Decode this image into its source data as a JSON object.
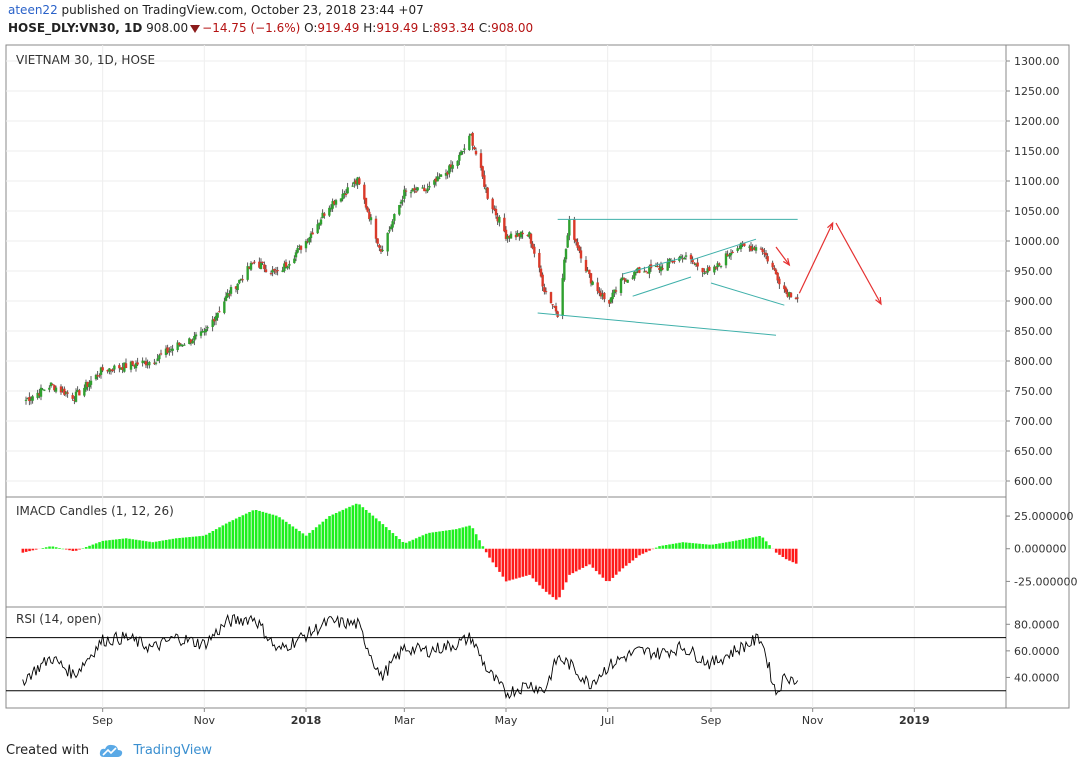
{
  "header": {
    "author": "ateen22",
    "published_text": "published on TradingView.com, October 23, 2018 23:44 +07",
    "symbol": "HOSE_DLY:VN30, 1D",
    "last": "908.00",
    "change": "−14.75 (−1.6%)",
    "open_label": "O:",
    "open": "919.49",
    "high_label": "H:",
    "high": "919.49",
    "low_label": "L:",
    "low": "893.34",
    "close_label": "C:",
    "close": "908.00"
  },
  "footer": {
    "created_with": "Created with",
    "brand": "TradingView"
  },
  "colors": {
    "up": "#2fa02f",
    "down": "#d93a2a",
    "hist_up": "#1ef01e",
    "hist_down": "#ff1a1a",
    "trend": "#3fb0aa",
    "arrow": "#e53131",
    "grid": "#eeeeee",
    "rsi_line": "#000000",
    "rsi_band": "#000000"
  },
  "chart_data": [
    {
      "type": "candlestick",
      "title": "VIETNAM 30, 1D, HOSE",
      "ylim": [
        590,
        1310
      ],
      "y_ticks": [
        "1300.00",
        "1250.00",
        "1200.00",
        "1150.00",
        "1100.00",
        "1050.00",
        "1000.00",
        "950.00",
        "900.00",
        "850.00",
        "800.00",
        "750.00",
        "700.00",
        "650.00",
        "600.00"
      ],
      "x_ticks": [
        "Sep",
        "Nov",
        "2018",
        "Mar",
        "May",
        "Jul",
        "Sep",
        "Nov",
        "2019"
      ],
      "series": [
        {
          "dates": [
            "2017-07-15",
            "2017-08-01",
            "2017-08-15",
            "2017-09-01",
            "2017-09-15",
            "2017-10-01",
            "2017-10-15",
            "2017-11-01",
            "2017-11-15",
            "2017-12-01",
            "2017-12-15",
            "2018-01-01",
            "2018-01-15",
            "2018-02-01",
            "2018-02-15",
            "2018-03-01",
            "2018-03-15",
            "2018-04-01",
            "2018-04-10",
            "2018-04-20",
            "2018-05-01",
            "2018-05-15",
            "2018-05-24",
            "2018-06-01",
            "2018-06-08",
            "2018-06-20",
            "2018-07-01",
            "2018-07-10",
            "2018-07-20",
            "2018-08-01",
            "2018-08-15",
            "2018-09-01",
            "2018-09-15",
            "2018-10-01",
            "2018-10-10",
            "2018-10-16",
            "2018-10-23"
          ],
          "values": [
            732,
            760,
            740,
            785,
            792,
            800,
            825,
            845,
            910,
            965,
            945,
            1000,
            1060,
            1100,
            985,
            1080,
            1085,
            1130,
            1175,
            1075,
            1010,
            1010,
            920,
            880,
            1030,
            940,
            895,
            935,
            950,
            955,
            975,
            945,
            990,
            990,
            945,
            915,
            908
          ]
        }
      ]
    },
    {
      "type": "bar",
      "title": "IMACD Candles (1, 12, 26)",
      "ylim": [
        -40,
        35
      ],
      "y_ticks": [
        "25.000000",
        "0.000000",
        "-25.000000"
      ],
      "series": [
        {
          "dates": [
            "2017-07-15",
            "2017-08-01",
            "2017-08-15",
            "2017-09-01",
            "2017-09-15",
            "2017-10-01",
            "2017-10-15",
            "2017-11-01",
            "2017-11-15",
            "2017-12-01",
            "2017-12-15",
            "2018-01-01",
            "2018-01-15",
            "2018-02-01",
            "2018-02-15",
            "2018-03-01",
            "2018-03-15",
            "2018-04-01",
            "2018-04-10",
            "2018-04-20",
            "2018-05-01",
            "2018-05-15",
            "2018-05-24",
            "2018-06-01",
            "2018-06-08",
            "2018-06-20",
            "2018-07-01",
            "2018-07-10",
            "2018-07-20",
            "2018-08-01",
            "2018-08-15",
            "2018-09-01",
            "2018-09-15",
            "2018-10-01",
            "2018-10-10",
            "2018-10-16",
            "2018-10-23"
          ],
          "values": [
            -3,
            2,
            -2,
            6,
            8,
            5,
            8,
            10,
            20,
            30,
            25,
            10,
            25,
            35,
            20,
            4,
            12,
            15,
            18,
            -5,
            -25,
            -20,
            -32,
            -40,
            -20,
            -12,
            -26,
            -15,
            -5,
            2,
            5,
            3,
            6,
            10,
            -3,
            -8,
            -12
          ]
        }
      ]
    },
    {
      "type": "line",
      "title": "RSI (14, open)",
      "ylim": [
        20,
        90
      ],
      "y_ticks": [
        "80.0000",
        "60.0000",
        "40.0000"
      ],
      "bands": [
        70,
        30
      ],
      "series": [
        {
          "dates": [
            "2017-07-15",
            "2017-08-01",
            "2017-08-15",
            "2017-09-01",
            "2017-09-15",
            "2017-10-01",
            "2017-10-15",
            "2017-11-01",
            "2017-11-15",
            "2017-12-01",
            "2017-12-15",
            "2018-01-01",
            "2018-01-15",
            "2018-02-01",
            "2018-02-15",
            "2018-03-01",
            "2018-03-15",
            "2018-04-01",
            "2018-04-10",
            "2018-04-20",
            "2018-05-01",
            "2018-05-15",
            "2018-05-24",
            "2018-06-01",
            "2018-06-08",
            "2018-06-20",
            "2018-07-01",
            "2018-07-10",
            "2018-07-20",
            "2018-08-01",
            "2018-08-15",
            "2018-09-01",
            "2018-09-15",
            "2018-10-01",
            "2018-10-10",
            "2018-10-16",
            "2018-10-23"
          ],
          "values": [
            38,
            55,
            42,
            68,
            70,
            62,
            70,
            65,
            82,
            85,
            60,
            72,
            82,
            80,
            40,
            62,
            60,
            65,
            70,
            45,
            28,
            35,
            30,
            55,
            50,
            35,
            48,
            55,
            60,
            58,
            63,
            50,
            60,
            70,
            28,
            42,
            36
          ]
        }
      ]
    }
  ]
}
